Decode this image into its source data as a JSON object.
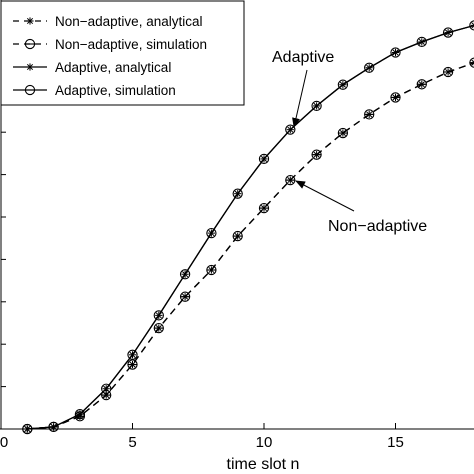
{
  "chart_data": {
    "type": "line",
    "xlabel": "time slot n",
    "ylabel": "",
    "xlim": [
      0,
      18
    ],
    "ylim": [
      0,
      1.0
    ],
    "grid": false,
    "legend_position": "top-left",
    "x_ticks": [
      "0",
      "5",
      "10",
      "15"
    ],
    "x": [
      1,
      2,
      3,
      4,
      5,
      6,
      7,
      8,
      9,
      10,
      11,
      12,
      13,
      14,
      15,
      16,
      17,
      18
    ],
    "series": [
      {
        "name": "Non−adaptive, analytical",
        "line": "dashed",
        "marker": "star",
        "values": [
          0.0,
          0.005,
          0.03,
          0.08,
          0.152,
          0.238,
          0.312,
          0.375,
          0.455,
          0.521,
          0.587,
          0.647,
          0.698,
          0.742,
          0.782,
          0.813,
          0.842,
          0.864
        ]
      },
      {
        "name": "Non−adaptive, simulation",
        "line": "dashed",
        "marker": "circle-dash",
        "values": [
          0.0,
          0.005,
          0.03,
          0.08,
          0.152,
          0.238,
          0.312,
          0.375,
          0.455,
          0.521,
          0.587,
          0.647,
          0.698,
          0.742,
          0.782,
          0.813,
          0.842,
          0.864
        ]
      },
      {
        "name": "Adaptive, analytical",
        "line": "solid",
        "marker": "star",
        "values": [
          0.0,
          0.005,
          0.035,
          0.095,
          0.175,
          0.268,
          0.365,
          0.462,
          0.555,
          0.637,
          0.706,
          0.762,
          0.812,
          0.852,
          0.888,
          0.913,
          0.935,
          0.952
        ]
      },
      {
        "name": "Adaptive, simulation",
        "line": "solid",
        "marker": "circle",
        "values": [
          0.0,
          0.005,
          0.035,
          0.095,
          0.175,
          0.268,
          0.365,
          0.462,
          0.555,
          0.637,
          0.706,
          0.762,
          0.812,
          0.852,
          0.888,
          0.913,
          0.935,
          0.952
        ]
      }
    ],
    "annotations": [
      {
        "text": "Adaptive",
        "target_series": 3,
        "target_x": 11
      },
      {
        "text": "Non−adaptive",
        "target_series": 1,
        "target_x": 11
      }
    ]
  }
}
